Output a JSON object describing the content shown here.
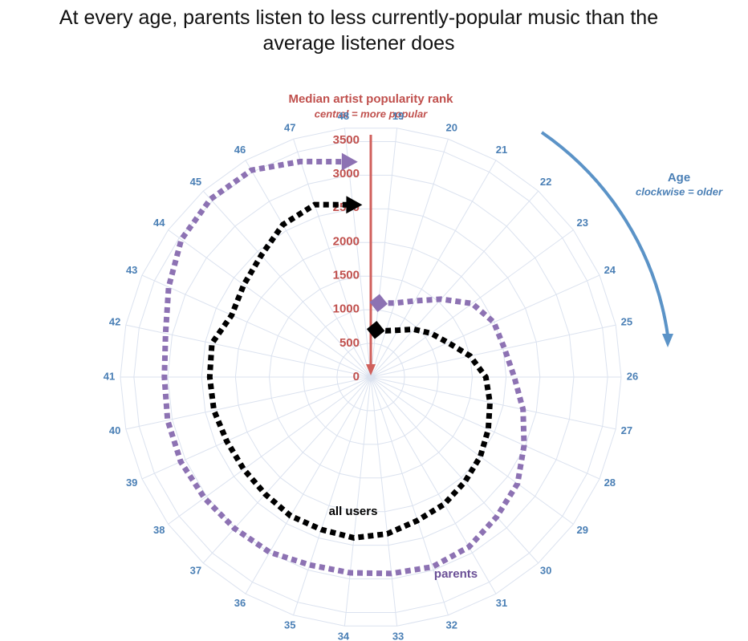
{
  "chart_data": {
    "type": "radar",
    "title": "At every age, parents listen to less currently-popular music than the average listener does",
    "radial_axis_label": "Median artist popularity rank",
    "radial_axis_note": "central = more popular",
    "angular_axis_label": "Age",
    "angular_axis_note": "clockwise = older",
    "categories": [
      "19",
      "20",
      "21",
      "22",
      "23",
      "24",
      "25",
      "26",
      "27",
      "28",
      "29",
      "30",
      "31",
      "32",
      "33",
      "34",
      "35",
      "36",
      "37",
      "38",
      "39",
      "40",
      "41",
      "42",
      "43",
      "44",
      "45",
      "46",
      "47",
      "48"
    ],
    "series": [
      {
        "name": "all users",
        "color": "#000000",
        "values": [
          700,
          720,
          800,
          950,
          1100,
          1250,
          1500,
          1700,
          1800,
          1900,
          2000,
          2080,
          2170,
          2230,
          2330,
          2390,
          2370,
          2370,
          2330,
          2320,
          2330,
          2370,
          2380,
          2400,
          2250,
          2320,
          2420,
          2600,
          2680,
          2560
        ]
      },
      {
        "name": "parents",
        "color": "#8d72b3",
        "values": [
          1100,
          1150,
          1300,
          1550,
          1850,
          1990,
          2020,
          2120,
          2300,
          2480,
          2680,
          2780,
          2900,
          2950,
          2920,
          2910,
          2920,
          2990,
          3010,
          3040,
          3075,
          3070,
          3050,
          3100,
          3270,
          3460,
          3540,
          3530,
          3350,
          3200
        ]
      }
    ],
    "ylim": [
      0,
      3700
    ],
    "yticks": [
      0,
      500,
      1000,
      1500,
      2000,
      2500,
      3000,
      3500
    ],
    "grid": true
  }
}
